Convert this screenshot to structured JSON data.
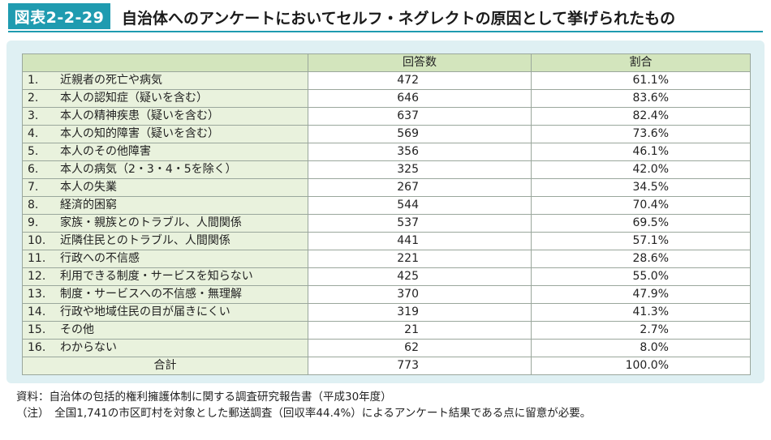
{
  "header": {
    "figure_label": "図表2-2-29",
    "title": "自治体へのアンケートにおいてセルフ・ネグレクトの原因として挙げられたもの"
  },
  "table": {
    "columns": [
      "",
      "回答数",
      "割合"
    ],
    "rows": [
      {
        "index": "1.",
        "label": "近親者の死亡や病気",
        "count": "472",
        "percent": "61.1%"
      },
      {
        "index": "2.",
        "label": "本人の認知症（疑いを含む）",
        "count": "646",
        "percent": "83.6%"
      },
      {
        "index": "3.",
        "label": "本人の精神疾患（疑いを含む）",
        "count": "637",
        "percent": "82.4%"
      },
      {
        "index": "4.",
        "label": "本人の知的障害（疑いを含む）",
        "count": "569",
        "percent": "73.6%"
      },
      {
        "index": "5.",
        "label": "本人のその他障害",
        "count": "356",
        "percent": "46.1%"
      },
      {
        "index": "6.",
        "label": "本人の病気（2・3・4・5を除く）",
        "count": "325",
        "percent": "42.0%"
      },
      {
        "index": "7.",
        "label": "本人の失業",
        "count": "267",
        "percent": "34.5%"
      },
      {
        "index": "8.",
        "label": "経済的困窮",
        "count": "544",
        "percent": "70.4%"
      },
      {
        "index": "9.",
        "label": "家族・親族とのトラブル、人間関係",
        "count": "537",
        "percent": "69.5%"
      },
      {
        "index": "10.",
        "label": "近隣住民とのトラブル、人間関係",
        "count": "441",
        "percent": "57.1%"
      },
      {
        "index": "11.",
        "label": "行政への不信感",
        "count": "221",
        "percent": "28.6%"
      },
      {
        "index": "12.",
        "label": "利用できる制度・サービスを知らない",
        "count": "425",
        "percent": "55.0%"
      },
      {
        "index": "13.",
        "label": "制度・サービスへの不信感・無理解",
        "count": "370",
        "percent": "47.9%"
      },
      {
        "index": "14.",
        "label": "行政や地域住民の目が届きにくい",
        "count": "319",
        "percent": "41.3%"
      },
      {
        "index": "15.",
        "label": "その他",
        "count": "21",
        "percent": "2.7%"
      },
      {
        "index": "16.",
        "label": "わからない",
        "count": "62",
        "percent": "8.0%"
      }
    ],
    "total": {
      "label": "合計",
      "count": "773",
      "percent": "100.0%"
    }
  },
  "notes": {
    "source": "資料：自治体の包括的権利擁護体制に関する調査研究報告書（平成30年度）",
    "note": "（注）　全国1,741の市区町村を対象とした郵送調査（回収率44.4%）によるアンケート結果である点に留意が必要。"
  },
  "colors": {
    "accent": "#1f9bb0",
    "panel": "#dff0f3",
    "header_cell": "#d3e5bd",
    "label_cell": "#e9f2dd"
  }
}
